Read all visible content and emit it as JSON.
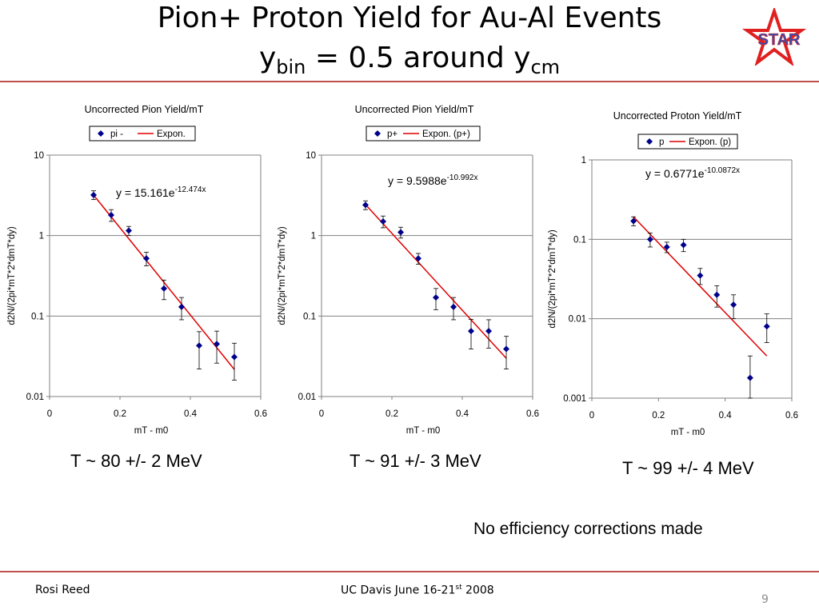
{
  "slide": {
    "title_line1": "Pion+ Proton Yield for Au-Al Events",
    "title_line2_prefix": "y",
    "title_line2_sub1": "bin",
    "title_line2_middle": " = 0.5 around y",
    "title_line2_sub2": "cm",
    "logo_text": "STAR",
    "note": "No efficiency corrections made",
    "footer_left": "Rosi Reed",
    "footer_center_prefix": "UC Davis June 16-21",
    "footer_center_sup": "st",
    "footer_center_suffix": " 2008",
    "page_number": "9",
    "temperatures": [
      "T ~ 80 +/- 2 MeV",
      "T ~ 91 +/- 3 MeV",
      "T ~ 99 +/- 4 MeV"
    ],
    "colors": {
      "accent_rule": "#c0504d",
      "point": "#00008b",
      "fit_line": "#e00000",
      "logo": "#e02020"
    }
  },
  "chart_data": [
    {
      "type": "scatter",
      "title": "Uncorrected Pion Yield/mT",
      "xlabel": "mT - m0",
      "ylabel": "d2N/(2pi*mT*2*dmT*dy)",
      "y_scale": "log",
      "xlim": [
        0,
        0.6
      ],
      "ylim": [
        0.01,
        10
      ],
      "x_ticks": [
        "0",
        "0.2",
        "0.4",
        "0.6"
      ],
      "y_ticks": [
        "0.01",
        "0.1",
        "1",
        "10"
      ],
      "legend": [
        "pi -",
        "Expon."
      ],
      "legend_position": "top",
      "fit_equation": "y = 15.161e",
      "fit_exponent": "-12.474x",
      "fit": {
        "A": 15.161,
        "k": -12.474,
        "x_range": [
          0.125,
          0.525
        ]
      },
      "grid": "horizontal",
      "points": [
        {
          "x": 0.125,
          "y": 3.2,
          "lo": 2.8,
          "hi": 3.6
        },
        {
          "x": 0.175,
          "y": 1.8,
          "lo": 1.5,
          "hi": 2.1
        },
        {
          "x": 0.225,
          "y": 1.15,
          "lo": 1.0,
          "hi": 1.3
        },
        {
          "x": 0.275,
          "y": 0.52,
          "lo": 0.42,
          "hi": 0.62
        },
        {
          "x": 0.325,
          "y": 0.22,
          "lo": 0.16,
          "hi": 0.28
        },
        {
          "x": 0.375,
          "y": 0.13,
          "lo": 0.09,
          "hi": 0.17
        },
        {
          "x": 0.425,
          "y": 0.043,
          "lo": 0.022,
          "hi": 0.064
        },
        {
          "x": 0.475,
          "y": 0.045,
          "lo": 0.026,
          "hi": 0.065
        },
        {
          "x": 0.525,
          "y": 0.031,
          "lo": 0.016,
          "hi": 0.046
        }
      ]
    },
    {
      "type": "scatter",
      "title": "Uncorrected Pion Yield/mT",
      "xlabel": "mT - m0",
      "ylabel": "d2N/(2pi*mT*2*dmT*dy)",
      "y_scale": "log",
      "xlim": [
        0,
        0.6
      ],
      "ylim": [
        0.01,
        10
      ],
      "x_ticks": [
        "0",
        "0.2",
        "0.4",
        "0.6"
      ],
      "y_ticks": [
        "0.01",
        "0.1",
        "1",
        "10"
      ],
      "legend": [
        "p+",
        "Expon. (p+)"
      ],
      "legend_position": "top",
      "fit_equation": "y = 9.5988e",
      "fit_exponent": "-10.992x",
      "fit": {
        "A": 9.5988,
        "k": -10.992,
        "x_range": [
          0.125,
          0.525
        ]
      },
      "grid": "horizontal",
      "points": [
        {
          "x": 0.125,
          "y": 2.4,
          "lo": 2.1,
          "hi": 2.7
        },
        {
          "x": 0.175,
          "y": 1.5,
          "lo": 1.25,
          "hi": 1.75
        },
        {
          "x": 0.225,
          "y": 1.1,
          "lo": 0.93,
          "hi": 1.27
        },
        {
          "x": 0.275,
          "y": 0.52,
          "lo": 0.44,
          "hi": 0.6
        },
        {
          "x": 0.325,
          "y": 0.17,
          "lo": 0.12,
          "hi": 0.22
        },
        {
          "x": 0.375,
          "y": 0.13,
          "lo": 0.09,
          "hi": 0.17
        },
        {
          "x": 0.425,
          "y": 0.065,
          "lo": 0.039,
          "hi": 0.091
        },
        {
          "x": 0.475,
          "y": 0.065,
          "lo": 0.04,
          "hi": 0.09
        },
        {
          "x": 0.525,
          "y": 0.039,
          "lo": 0.022,
          "hi": 0.056
        }
      ]
    },
    {
      "type": "scatter",
      "title": "Uncorrected Proton Yield/mT",
      "xlabel": "mT - m0",
      "ylabel": "d2N/(2pi*mT*2*dmT*dy)",
      "y_scale": "log",
      "xlim": [
        0,
        0.6
      ],
      "ylim": [
        0.001,
        1
      ],
      "x_ticks": [
        "0",
        "0.2",
        "0.4",
        "0.6"
      ],
      "y_ticks": [
        "0.001",
        "0.01",
        "0.1",
        "1"
      ],
      "legend": [
        "p",
        "Expon. (p)"
      ],
      "legend_position": "top",
      "fit_equation": "y = 0.6771e",
      "fit_exponent": "-10.0872x",
      "fit": {
        "A": 0.6771,
        "k": -10.0872,
        "x_range": [
          0.125,
          0.525
        ]
      },
      "grid": "horizontal",
      "points": [
        {
          "x": 0.125,
          "y": 0.17,
          "lo": 0.148,
          "hi": 0.192
        },
        {
          "x": 0.175,
          "y": 0.1,
          "lo": 0.08,
          "hi": 0.12
        },
        {
          "x": 0.225,
          "y": 0.08,
          "lo": 0.068,
          "hi": 0.092
        },
        {
          "x": 0.275,
          "y": 0.085,
          "lo": 0.07,
          "hi": 0.1
        },
        {
          "x": 0.325,
          "y": 0.035,
          "lo": 0.027,
          "hi": 0.043
        },
        {
          "x": 0.375,
          "y": 0.02,
          "lo": 0.014,
          "hi": 0.026
        },
        {
          "x": 0.425,
          "y": 0.015,
          "lo": 0.01,
          "hi": 0.02
        },
        {
          "x": 0.475,
          "y": 0.0018,
          "lo": 0.001,
          "hi": 0.0034
        },
        {
          "x": 0.525,
          "y": 0.008,
          "lo": 0.005,
          "hi": 0.0115
        }
      ]
    }
  ]
}
